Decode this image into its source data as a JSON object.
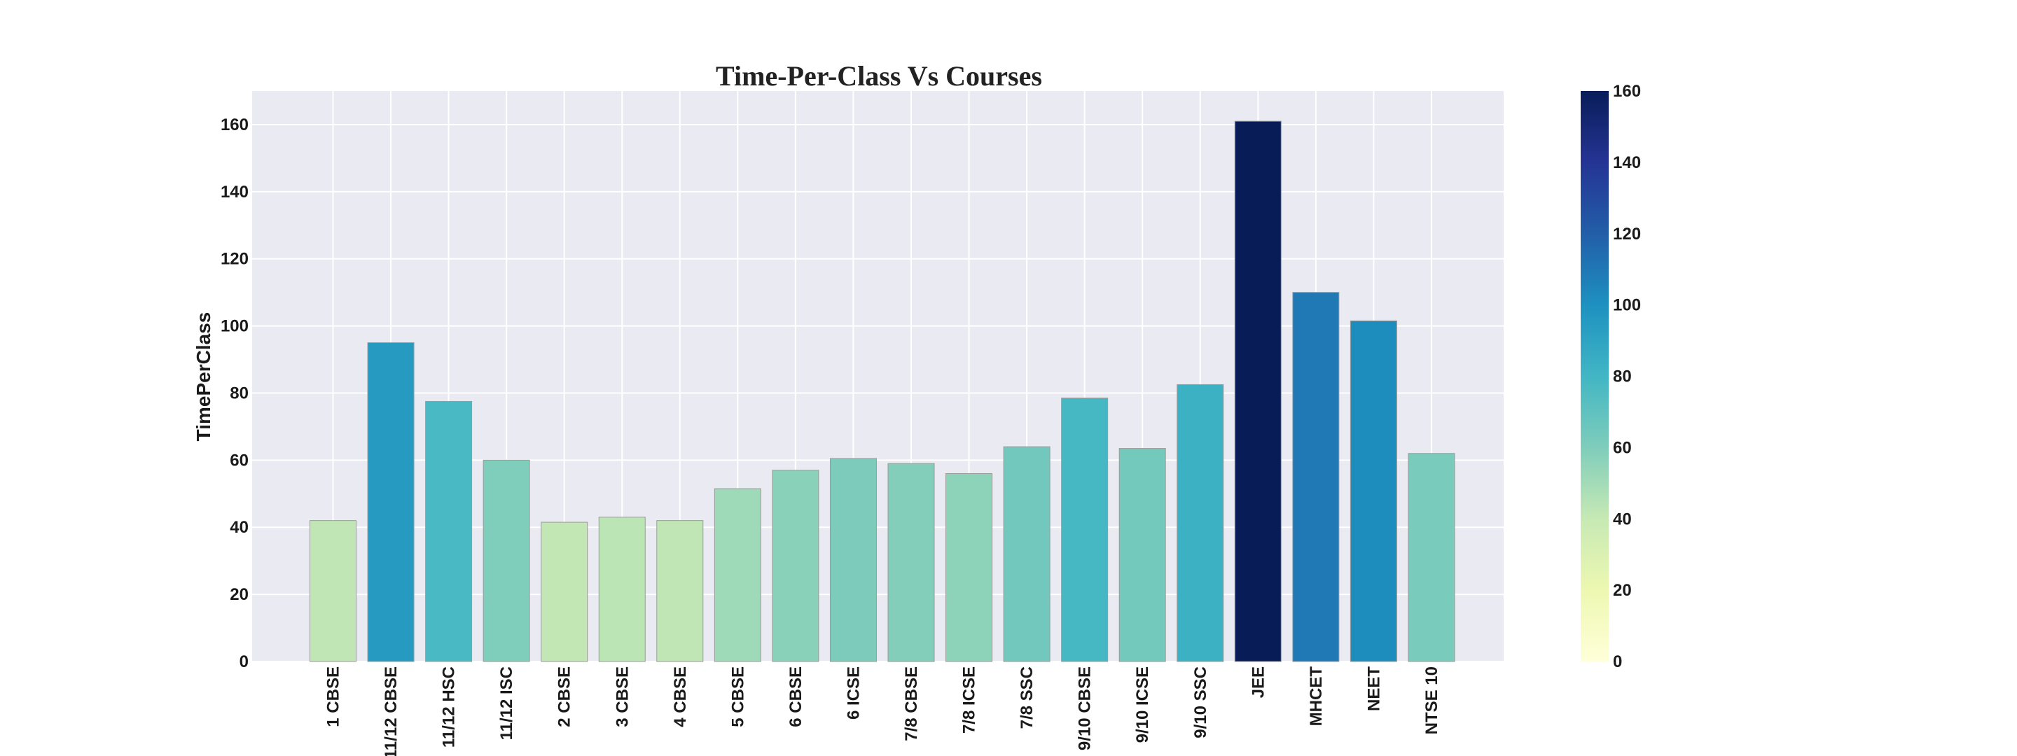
{
  "chart_data": {
    "type": "bar",
    "title": "Time-Per-Class Vs Courses",
    "xlabel": "",
    "ylabel": "TimePerClass",
    "categories": [
      "1 CBSE",
      "11/12 CBSE",
      "11/12 HSC",
      "11/12 ISC",
      "2 CBSE",
      "3 CBSE",
      "4 CBSE",
      "5 CBSE",
      "6 CBSE",
      "6 ICSE",
      "7/8 CBSE",
      "7/8 ICSE",
      "7/8 SSC",
      "9/10 CBSE",
      "9/10 ICSE",
      "9/10 SSC",
      "JEE",
      "MHCET",
      "NEET",
      "NTSE 10"
    ],
    "values": [
      42,
      95,
      77.5,
      60,
      41.5,
      43,
      42,
      51.5,
      57,
      60.5,
      59,
      56,
      64,
      78.5,
      63.5,
      82.5,
      161,
      110,
      101.5,
      62
    ],
    "ylim": [
      0,
      170
    ],
    "yticks": [
      0,
      20,
      40,
      60,
      80,
      100,
      120,
      140,
      160
    ],
    "grid": true,
    "colorbar": {
      "colormap": "YlGnBu",
      "range": [
        0,
        160
      ],
      "ticks": [
        0,
        20,
        40,
        60,
        80,
        100,
        120,
        140,
        160
      ]
    },
    "colors": {
      "plot_background": "#eaeaf2",
      "grid": "#ffffff",
      "bar_edge": "#9a9a9a"
    }
  }
}
